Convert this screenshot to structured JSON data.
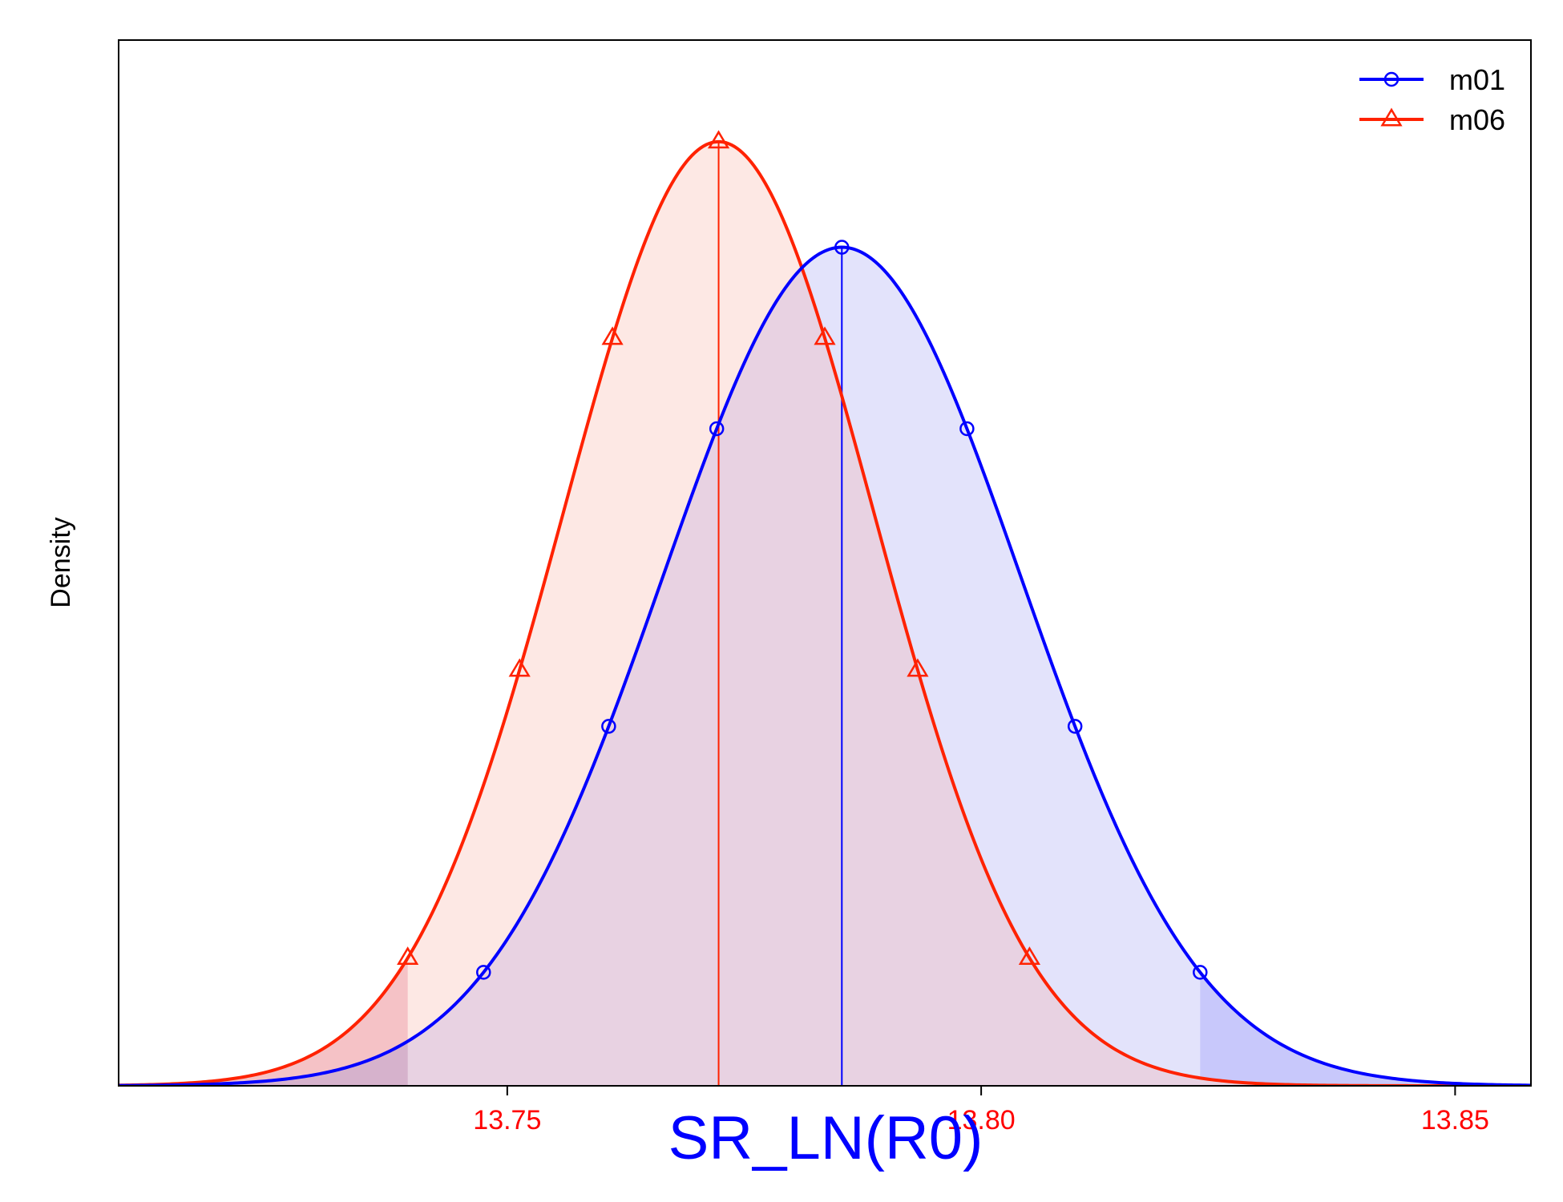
{
  "chart_data": {
    "type": "line",
    "title": "",
    "xlabel": "SR_LN(R0)",
    "ylabel": "Density",
    "xlim": [
      13.709,
      13.858
    ],
    "ylim": [
      0,
      1.06
    ],
    "x_ticks": [
      13.75,
      13.8,
      13.85
    ],
    "x_tick_labels": [
      "13.75",
      "13.80",
      "13.85"
    ],
    "grid": false,
    "legend_position": "top-right",
    "colors": {
      "axis_label": "#0000ff",
      "tick_label": "#ff0000",
      "m01": "#0000ff",
      "m06": "#ff2200",
      "m01_fill": "#e3e3fb",
      "m06_fill": "#fde8e4",
      "m01_tail": "#c8c8fb",
      "m06_tail": "#f5c2c6",
      "overlap": "#e8d2e2"
    },
    "series": [
      {
        "name": "m01",
        "marker": "circle",
        "mean": 13.7853,
        "sd": 0.0189,
        "peak": 0.85,
        "ci": [
          13.7475,
          13.8231
        ],
        "marker_x": [
          13.7475,
          13.7607,
          13.7721,
          13.7853,
          13.7985,
          13.8099,
          13.8231
        ]
      },
      {
        "name": "m06",
        "marker": "triangle",
        "mean": 13.7723,
        "sd": 0.0164,
        "peak": 0.957,
        "ci": [
          13.7395,
          13.8051
        ],
        "marker_x": [
          13.7395,
          13.7513,
          13.7611,
          13.7723,
          13.7835,
          13.7933,
          13.8051
        ]
      }
    ]
  }
}
